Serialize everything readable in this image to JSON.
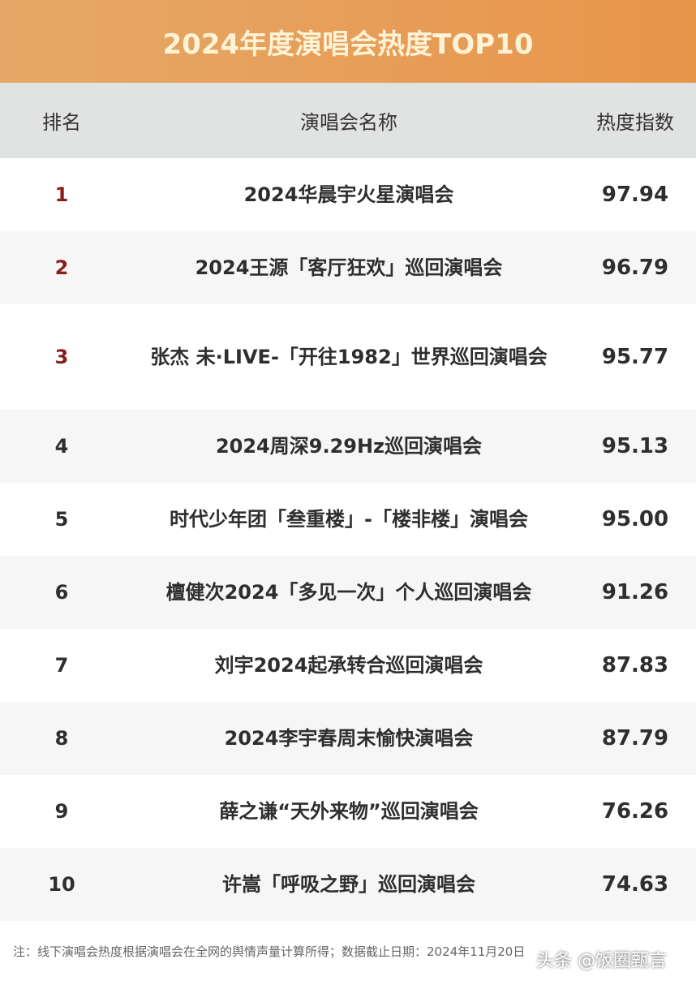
{
  "title": "2024年度演唱会热度TOP10",
  "headers": [
    "排名",
    "演唱会名称",
    "热度指数"
  ],
  "rows": [
    {
      "rank": "1",
      "name": "2024华晨宇火星演唱会",
      "score": "97.94"
    },
    {
      "rank": "2",
      "name": "2024王源「客厅狂欢」巡回演唱会",
      "score": "96.79"
    },
    {
      "rank": "3",
      "name": "张杰 未·LIVE-「开往1982」世界巡回演唱会",
      "score": "95.77"
    },
    {
      "rank": "4",
      "name": "2024周深9.29Hz巡回演唱会",
      "score": "95.13"
    },
    {
      "rank": "5",
      "name": "时代少年团「叁重楼」-「楼非楼」演唱会",
      "score": "95.00"
    },
    {
      "rank": "6",
      "name": "檀健次2024「多见一次」个人巡回演唱会",
      "score": "91.26"
    },
    {
      "rank": "7",
      "name": "刘宇2024起承转合巡回演唱会",
      "score": "87.83"
    },
    {
      "rank": "8",
      "name": "2024李宇春周末愉快演唱会",
      "score": "87.79"
    },
    {
      "rank": "9",
      "name": "薛之谦“天外来物”巡回演唱会",
      "score": "76.26"
    },
    {
      "rank": "10",
      "name": "许嵩「呼吸之野」巡回演唱会",
      "score": "74.63"
    }
  ],
  "note": "注：线下演唱会热度根据演唱会在全网的舆情声量计算所得；数据截止日期：2024年11月20日",
  "watermark": "头条 @饭圈甄言",
  "colors": {
    "banner": "#e8954a",
    "header_bg": "#e1e3e2",
    "top3_rank": "#8a1c1c"
  },
  "chart_data": {
    "type": "table",
    "title": "2024年度演唱会热度TOP10",
    "columns": [
      "排名",
      "演唱会名称",
      "热度指数"
    ],
    "values": [
      97.94,
      96.79,
      95.77,
      95.13,
      95.0,
      91.26,
      87.83,
      87.79,
      76.26,
      74.63
    ]
  }
}
